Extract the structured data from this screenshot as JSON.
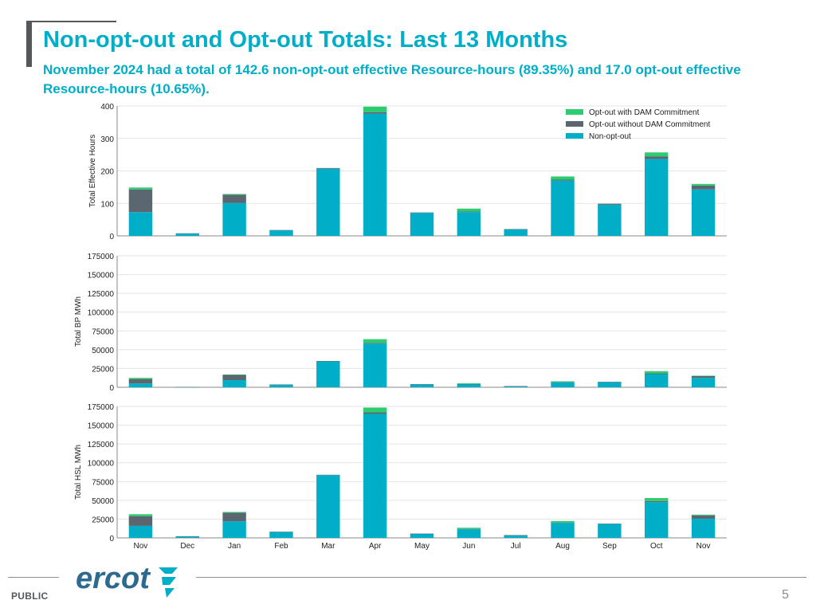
{
  "header": {
    "title": "Non-opt-out and Opt-out Totals: Last 13 Months",
    "subtitle": "November 2024 had a total of 142.6 non-opt-out effective Resource-hours (89.35%) and 17.0 opt-out effective Resource-hours (10.65%)."
  },
  "colors": {
    "non_opt_out": "#00aec7",
    "opt_out_no_dam": "#5b6770",
    "opt_out_dam": "#2ecc71",
    "grid": "#e3e3e3",
    "axis": "#333333"
  },
  "chart_data": [
    {
      "type": "bar",
      "stacked": true,
      "ylabel": "Total Effective Hours",
      "ylim": [
        0,
        400
      ],
      "yticks": [
        0,
        100,
        200,
        300,
        400
      ],
      "legend": {
        "position": "top-right",
        "entries": [
          "Opt-out with DAM Commitment",
          "Opt-out without DAM Commitment",
          "Non-opt-out"
        ]
      },
      "categories": [
        "Nov",
        "Dec",
        "Jan",
        "Feb",
        "Mar",
        "Apr",
        "May",
        "Jun",
        "Jul",
        "Aug",
        "Sep",
        "Oct",
        "Nov"
      ],
      "series": [
        {
          "name": "Non-opt-out",
          "values": [
            73,
            7,
            101,
            17,
            207,
            376,
            71,
            73,
            20,
            170,
            96,
            237,
            143
          ]
        },
        {
          "name": "Opt-out without DAM Commitment",
          "values": [
            70,
            1,
            26,
            1,
            2,
            5,
            1,
            2,
            1,
            3,
            3,
            8,
            12
          ]
        },
        {
          "name": "Opt-out with DAM Commitment",
          "values": [
            6,
            0,
            2,
            0,
            0,
            17,
            0,
            9,
            0,
            10,
            0,
            12,
            5
          ]
        }
      ]
    },
    {
      "type": "bar",
      "stacked": true,
      "ylabel": "Total BP MWh",
      "ylim": [
        0,
        175000
      ],
      "yticks": [
        0,
        25000,
        50000,
        75000,
        100000,
        125000,
        150000,
        175000
      ],
      "categories": [
        "Nov",
        "Dec",
        "Jan",
        "Feb",
        "Mar",
        "Apr",
        "May",
        "Jun",
        "Jul",
        "Aug",
        "Sep",
        "Oct",
        "Nov"
      ],
      "series": [
        {
          "name": "Non-opt-out",
          "values": [
            5000,
            300,
            9500,
            3500,
            34500,
            58000,
            4000,
            4000,
            1500,
            6500,
            7000,
            17500,
            12500
          ]
        },
        {
          "name": "Opt-out without DAM Commitment",
          "values": [
            6000,
            100,
            7000,
            200,
            500,
            1000,
            100,
            300,
            100,
            500,
            200,
            1000,
            2500
          ]
        },
        {
          "name": "Opt-out with DAM Commitment",
          "values": [
            1500,
            0,
            500,
            0,
            0,
            5000,
            0,
            1000,
            0,
            1000,
            0,
            3000,
            500
          ]
        }
      ]
    },
    {
      "type": "bar",
      "stacked": true,
      "ylabel": "Total HSL MWh",
      "ylim": [
        0,
        175000
      ],
      "yticks": [
        0,
        25000,
        50000,
        75000,
        100000,
        125000,
        150000,
        175000
      ],
      "xlabels": [
        "Nov",
        "Dec",
        "Jan",
        "Feb",
        "Mar",
        "Apr",
        "May",
        "Jun",
        "Jul",
        "Aug",
        "Sep",
        "Oct",
        "Nov"
      ],
      "categories": [
        "Nov",
        "Dec",
        "Jan",
        "Feb",
        "Mar",
        "Apr",
        "May",
        "Jun",
        "Jul",
        "Aug",
        "Sep",
        "Oct",
        "Nov"
      ],
      "series": [
        {
          "name": "Non-opt-out",
          "values": [
            16000,
            2000,
            22000,
            8000,
            83500,
            165000,
            5500,
            11500,
            3500,
            20000,
            18500,
            47500,
            25500
          ]
        },
        {
          "name": "Opt-out without DAM Commitment",
          "values": [
            13000,
            200,
            11500,
            200,
            500,
            2000,
            200,
            500,
            200,
            500,
            500,
            1500,
            4500
          ]
        },
        {
          "name": "Opt-out with DAM Commitment",
          "values": [
            2500,
            0,
            1000,
            0,
            0,
            6500,
            0,
            1500,
            0,
            2000,
            0,
            4000,
            1000
          ]
        }
      ]
    }
  ],
  "footer": {
    "logo_text": "ercot",
    "label": "PUBLIC",
    "page_number": "5"
  }
}
